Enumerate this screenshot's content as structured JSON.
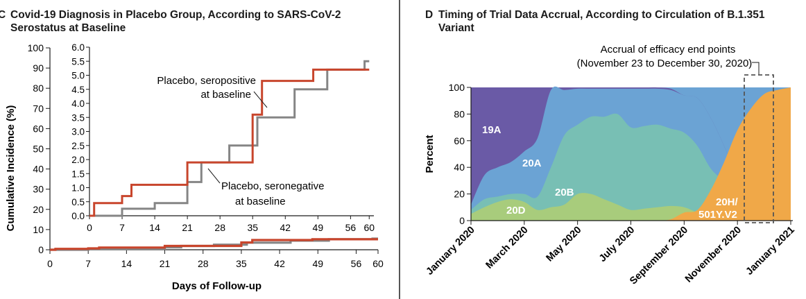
{
  "panel_c": {
    "letter": "C",
    "title_line1": "Covid-19 Diagnosis in Placebo Group, According to SARS-CoV-2",
    "title_line2": "Serostatus at Baseline"
  },
  "panel_d": {
    "letter": "D",
    "title_line1": "Timing of Trial Data Accrual, According to Circulation of B.1.351",
    "title_line2": "Variant"
  },
  "colors": {
    "seropositive": "#c8452c",
    "seronegative": "#858585",
    "19A": "#6a5aa6",
    "20A": "#6ba3d4",
    "20B": "#78bfb4",
    "20D": "#a8cc7c",
    "20H": "#f0a848",
    "axis": "#1a1a1a",
    "bracket": "#555555"
  },
  "chart_data": [
    {
      "type": "line",
      "title": "Covid-19 Diagnosis in Placebo Group, According to SARS-CoV-2 Serostatus at Baseline",
      "xlabel": "Days of Follow-up",
      "ylabel": "Cumulative Incidence (%)",
      "xlim": [
        0,
        60
      ],
      "ylim": [
        0,
        100
      ],
      "xticks": [
        "0",
        "7",
        "14",
        "21",
        "28",
        "35",
        "42",
        "49",
        "56",
        "60"
      ],
      "yticks": [
        "0",
        "10",
        "20",
        "30",
        "40",
        "50",
        "60",
        "70",
        "80",
        "90",
        "100"
      ],
      "series": [
        {
          "name": "Placebo, seropositive at baseline",
          "x": [
            0,
            1,
            1,
            7,
            7,
            9,
            9,
            21,
            21,
            35,
            35,
            37,
            37,
            48,
            48,
            60
          ],
          "y": [
            0,
            0,
            0.45,
            0.45,
            0.7,
            0.7,
            1.1,
            1.1,
            1.9,
            1.9,
            3.6,
            3.6,
            4.8,
            4.8,
            5.2,
            5.2
          ]
        },
        {
          "name": "Placebo, seronegative at baseline",
          "x": [
            0,
            7,
            7,
            14,
            14,
            21,
            21,
            24,
            24,
            30,
            30,
            36,
            36,
            44,
            44,
            51,
            51,
            59,
            59,
            60
          ],
          "y": [
            0,
            0,
            0.25,
            0.25,
            0.45,
            0.45,
            1.2,
            1.2,
            1.9,
            1.9,
            2.5,
            2.5,
            3.5,
            3.5,
            4.5,
            4.5,
            5.2,
            5.2,
            5.5,
            5.5
          ]
        }
      ],
      "annotations": [
        {
          "text_line1": "Placebo, seropositive",
          "text_line2": "at baseline"
        },
        {
          "text_line1": "Placebo, seronegative",
          "text_line2": "at baseline"
        }
      ],
      "inset": {
        "xlim": [
          0,
          61
        ],
        "ylim": [
          0,
          6
        ],
        "xticks": [
          "0",
          "7",
          "14",
          "21",
          "28",
          "35",
          "42",
          "49",
          "56",
          "60"
        ],
        "yticks": [
          "0.0",
          "0.5",
          "1.0",
          "1.5",
          "2.0",
          "2.5",
          "3.0",
          "3.5",
          "4.0",
          "4.5",
          "5.0",
          "5.5",
          "6.0"
        ]
      },
      "grid": false,
      "legend": "none"
    },
    {
      "type": "area",
      "title": "Timing of Trial Data Accrual, According to Circulation of B.1.351 Variant",
      "xlabel": "",
      "ylabel": "Percent",
      "ylim": [
        0,
        100
      ],
      "yticks": [
        "0",
        "20",
        "40",
        "60",
        "80",
        "100"
      ],
      "xticks": [
        "January 2020",
        "March 2020",
        "May 2020",
        "July 2020",
        "September 2020",
        "November 2020",
        "January 2021"
      ],
      "x_months": [
        0,
        0.5,
        1,
        1.5,
        2,
        2.5,
        3,
        3.5,
        4,
        4.5,
        5,
        5.5,
        6,
        6.5,
        7,
        7.5,
        8,
        8.5,
        9,
        9.5,
        10,
        10.5,
        11,
        11.5,
        12
      ],
      "series": [
        {
          "name": "20D",
          "values": [
            5,
            10,
            14,
            16,
            14,
            8,
            10,
            12,
            20,
            20,
            16,
            12,
            8,
            9,
            10,
            11,
            10,
            6,
            3,
            1,
            0,
            0,
            0,
            0,
            0
          ]
        },
        {
          "name": "20B",
          "values": [
            3,
            6,
            4,
            4,
            6,
            10,
            30,
            52,
            52,
            58,
            62,
            68,
            62,
            62,
            62,
            58,
            56,
            50,
            36,
            28,
            15,
            8,
            3,
            1,
            0
          ]
        },
        {
          "name": "20A",
          "values": [
            4,
            18,
            22,
            24,
            32,
            44,
            58,
            34,
            27,
            21,
            21,
            19,
            29,
            28,
            27,
            29,
            28,
            36,
            38,
            27,
            17,
            8,
            2,
            1,
            0
          ]
        },
        {
          "name": "19A",
          "values": [
            88,
            66,
            60,
            56,
            48,
            38,
            2,
            2,
            1,
            1,
            1,
            1,
            1,
            1,
            1,
            1,
            0,
            0,
            0,
            0,
            0,
            0,
            0,
            0,
            0
          ]
        },
        {
          "name": "20H/501Y.V2",
          "values": [
            0,
            0,
            0,
            0,
            0,
            0,
            0,
            0,
            0,
            0,
            0,
            0,
            0,
            0,
            0,
            1,
            6,
            8,
            23,
            44,
            68,
            84,
            95,
            98,
            100
          ]
        }
      ],
      "series_labels": [
        "19A",
        "20A",
        "20B",
        "20D",
        "20H/",
        "501Y.V2"
      ],
      "annotation": {
        "line1": "Accrual of efficacy end points",
        "line2": "(November 23 to December 30, 2020)"
      },
      "grid": false,
      "legend": "none"
    }
  ]
}
